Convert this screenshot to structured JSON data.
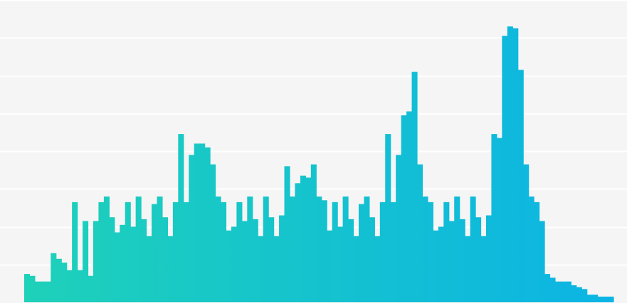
{
  "chart_data": {
    "type": "bar",
    "title": "",
    "xlabel": "",
    "ylabel": "",
    "ylim": [
      0,
      8
    ],
    "grid": true,
    "legend": "none",
    "colors": {
      "start": "#1ed1b9",
      "end": "#0bb4e4",
      "grid": "#ffffff",
      "background": "#f5f5f5"
    },
    "values": [
      0.75,
      0.7,
      0.55,
      0.55,
      0.55,
      1.3,
      1.15,
      1.05,
      0.85,
      2.65,
      0.85,
      2.15,
      0.7,
      2.15,
      2.65,
      2.8,
      2.25,
      1.85,
      2.05,
      2.65,
      2.0,
      2.8,
      2.2,
      1.75,
      2.6,
      2.8,
      2.25,
      1.75,
      2.65,
      4.45,
      2.65,
      3.9,
      4.2,
      4.2,
      4.1,
      3.65,
      2.8,
      2.65,
      1.9,
      2.0,
      2.65,
      2.15,
      2.8,
      2.2,
      1.75,
      2.8,
      2.25,
      1.75,
      2.3,
      3.6,
      2.8,
      3.15,
      3.35,
      3.3,
      3.65,
      2.8,
      2.7,
      1.9,
      2.65,
      2.0,
      2.8,
      2.2,
      1.75,
      2.6,
      2.8,
      2.25,
      1.75,
      2.65,
      4.45,
      2.65,
      3.9,
      4.95,
      5.05,
      6.1,
      3.65,
      2.8,
      2.65,
      1.9,
      2.0,
      2.65,
      2.15,
      2.8,
      2.2,
      1.75,
      2.8,
      2.25,
      1.75,
      2.3,
      4.45,
      4.35,
      7.05,
      7.3,
      7.25,
      6.15,
      3.65,
      2.8,
      2.65,
      2.15,
      0.75,
      0.65,
      0.55,
      0.55,
      0.55,
      0.45,
      0.4,
      0.35,
      0.2,
      0.2,
      0.15,
      0.15,
      0.15
    ]
  }
}
